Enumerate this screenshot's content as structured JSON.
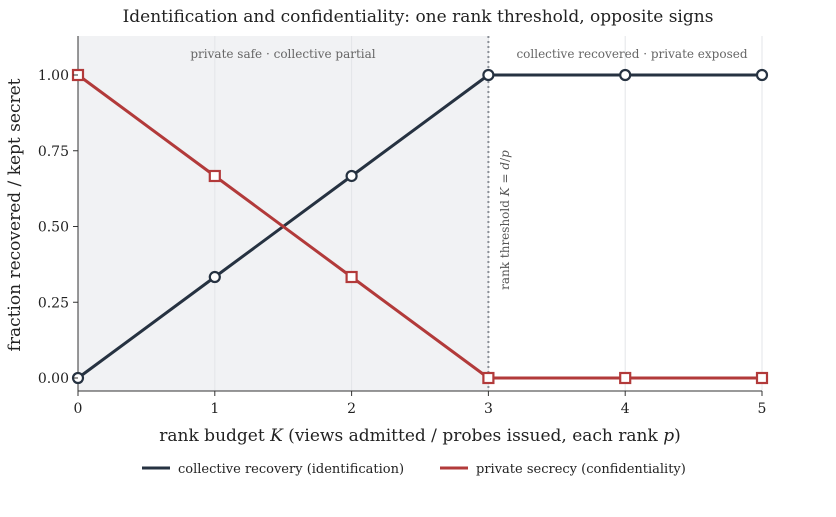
{
  "chart_data": {
    "type": "line",
    "title": "Identification and confidentiality: one rank threshold, opposite signs",
    "xlabel_pre": "rank budget ",
    "xlabel_var": "K",
    "xlabel_post": " (views admitted / probes issued, each rank ",
    "xlabel_var2": "p",
    "xlabel_end": ")",
    "ylabel": "fraction recovered / kept secret",
    "xlim": [
      0,
      5
    ],
    "ylim": [
      -0.05,
      1.13
    ],
    "xticks": [
      "0",
      "1",
      "2",
      "3",
      "4",
      "5"
    ],
    "yticks": [
      "0.00",
      "0.25",
      "0.50",
      "0.75",
      "1.00"
    ],
    "x": [
      0,
      1,
      2,
      3,
      4,
      5
    ],
    "series": [
      {
        "name": "collective recovery (identification)",
        "values": [
          0,
          0.3333,
          0.6667,
          1,
          1,
          1
        ],
        "color": "#263241",
        "marker": "circle"
      },
      {
        "name": "private secrecy (confidentiality)",
        "values": [
          1,
          0.6667,
          0.3333,
          0,
          0,
          0
        ],
        "color": "#b23a3a",
        "marker": "square"
      }
    ],
    "threshold_x": 3,
    "threshold_label": "rank threshold K = d/p",
    "region_left_label": "private safe · collective partial",
    "region_right_label": "collective recovered · private exposed",
    "shaded_region": [
      0,
      3
    ],
    "grid": "vertical",
    "legend_position": "bottom-center"
  }
}
